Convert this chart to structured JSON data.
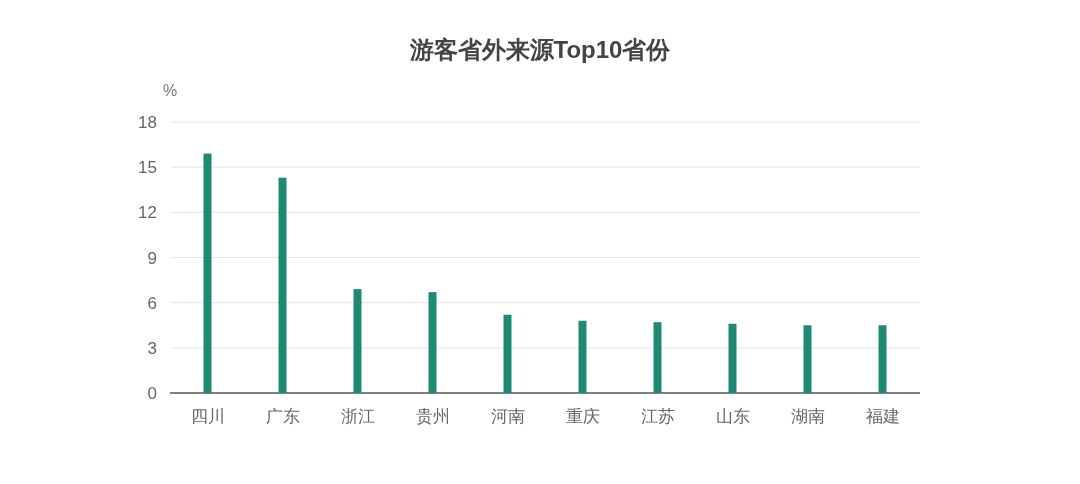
{
  "chart_data": {
    "type": "bar",
    "title": "游客省外来源Top10省份",
    "ylabel": "%",
    "categories": [
      "四川",
      "广东",
      "浙江",
      "贵州",
      "河南",
      "重庆",
      "江苏",
      "山东",
      "湖南",
      "福建"
    ],
    "values": [
      15.9,
      14.3,
      6.9,
      6.7,
      5.2,
      4.8,
      4.7,
      4.6,
      4.5,
      4.5
    ],
    "color": "#1e8a74",
    "ylim": [
      0,
      18
    ],
    "yticks": [
      0,
      3,
      6,
      9,
      12,
      15,
      18
    ],
    "grid": "y"
  }
}
